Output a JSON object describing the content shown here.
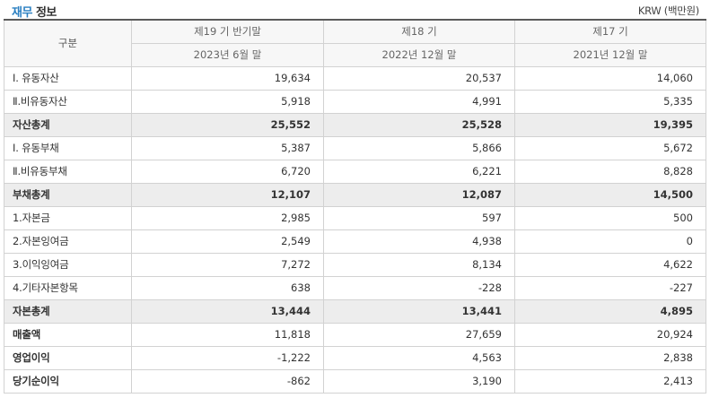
{
  "header": {
    "title_accent": "재무",
    "title_rest": "정보",
    "unit": "KRW (백만원)"
  },
  "table": {
    "corner": "구분",
    "columns": [
      {
        "period": "제19 기 반기말",
        "date": "2023년 6월 말"
      },
      {
        "period": "제18 기",
        "date": "2022년 12월 말"
      },
      {
        "period": "제17 기",
        "date": "2021년 12월 말"
      }
    ],
    "rows": [
      {
        "label": "Ⅰ. 유동자산",
        "values": [
          "19,634",
          "20,537",
          "14,060"
        ],
        "style": "normal"
      },
      {
        "label": "Ⅱ.비유동자산",
        "values": [
          "5,918",
          "4,991",
          "5,335"
        ],
        "style": "normal"
      },
      {
        "label": "자산총계",
        "values": [
          "25,552",
          "25,528",
          "19,395"
        ],
        "style": "total"
      },
      {
        "label": "Ⅰ. 유동부채",
        "values": [
          "5,387",
          "5,866",
          "5,672"
        ],
        "style": "normal"
      },
      {
        "label": "Ⅱ.비유동부채",
        "values": [
          "6,720",
          "6,221",
          "8,828"
        ],
        "style": "normal"
      },
      {
        "label": "부채총계",
        "values": [
          "12,107",
          "12,087",
          "14,500"
        ],
        "style": "total"
      },
      {
        "label": "1.자본금",
        "values": [
          "2,985",
          "597",
          "500"
        ],
        "style": "normal"
      },
      {
        "label": "2.자본잉여금",
        "values": [
          "2,549",
          "4,938",
          "0"
        ],
        "style": "normal"
      },
      {
        "label": "3.이익잉여금",
        "values": [
          "7,272",
          "8,134",
          "4,622"
        ],
        "style": "normal"
      },
      {
        "label": "4.기타자본항목",
        "values": [
          "638",
          "-228",
          "-227"
        ],
        "style": "normal"
      },
      {
        "label": "자본총계",
        "values": [
          "13,444",
          "13,441",
          "4,895"
        ],
        "style": "total"
      },
      {
        "label": "매출액",
        "values": [
          "11,818",
          "27,659",
          "20,924"
        ],
        "style": "bold"
      },
      {
        "label": "영업이익",
        "values": [
          "-1,222",
          "4,563",
          "2,838"
        ],
        "style": "bold"
      },
      {
        "label": "당기순이익",
        "values": [
          "-862",
          "3,190",
          "2,413"
        ],
        "style": "bold"
      }
    ]
  }
}
